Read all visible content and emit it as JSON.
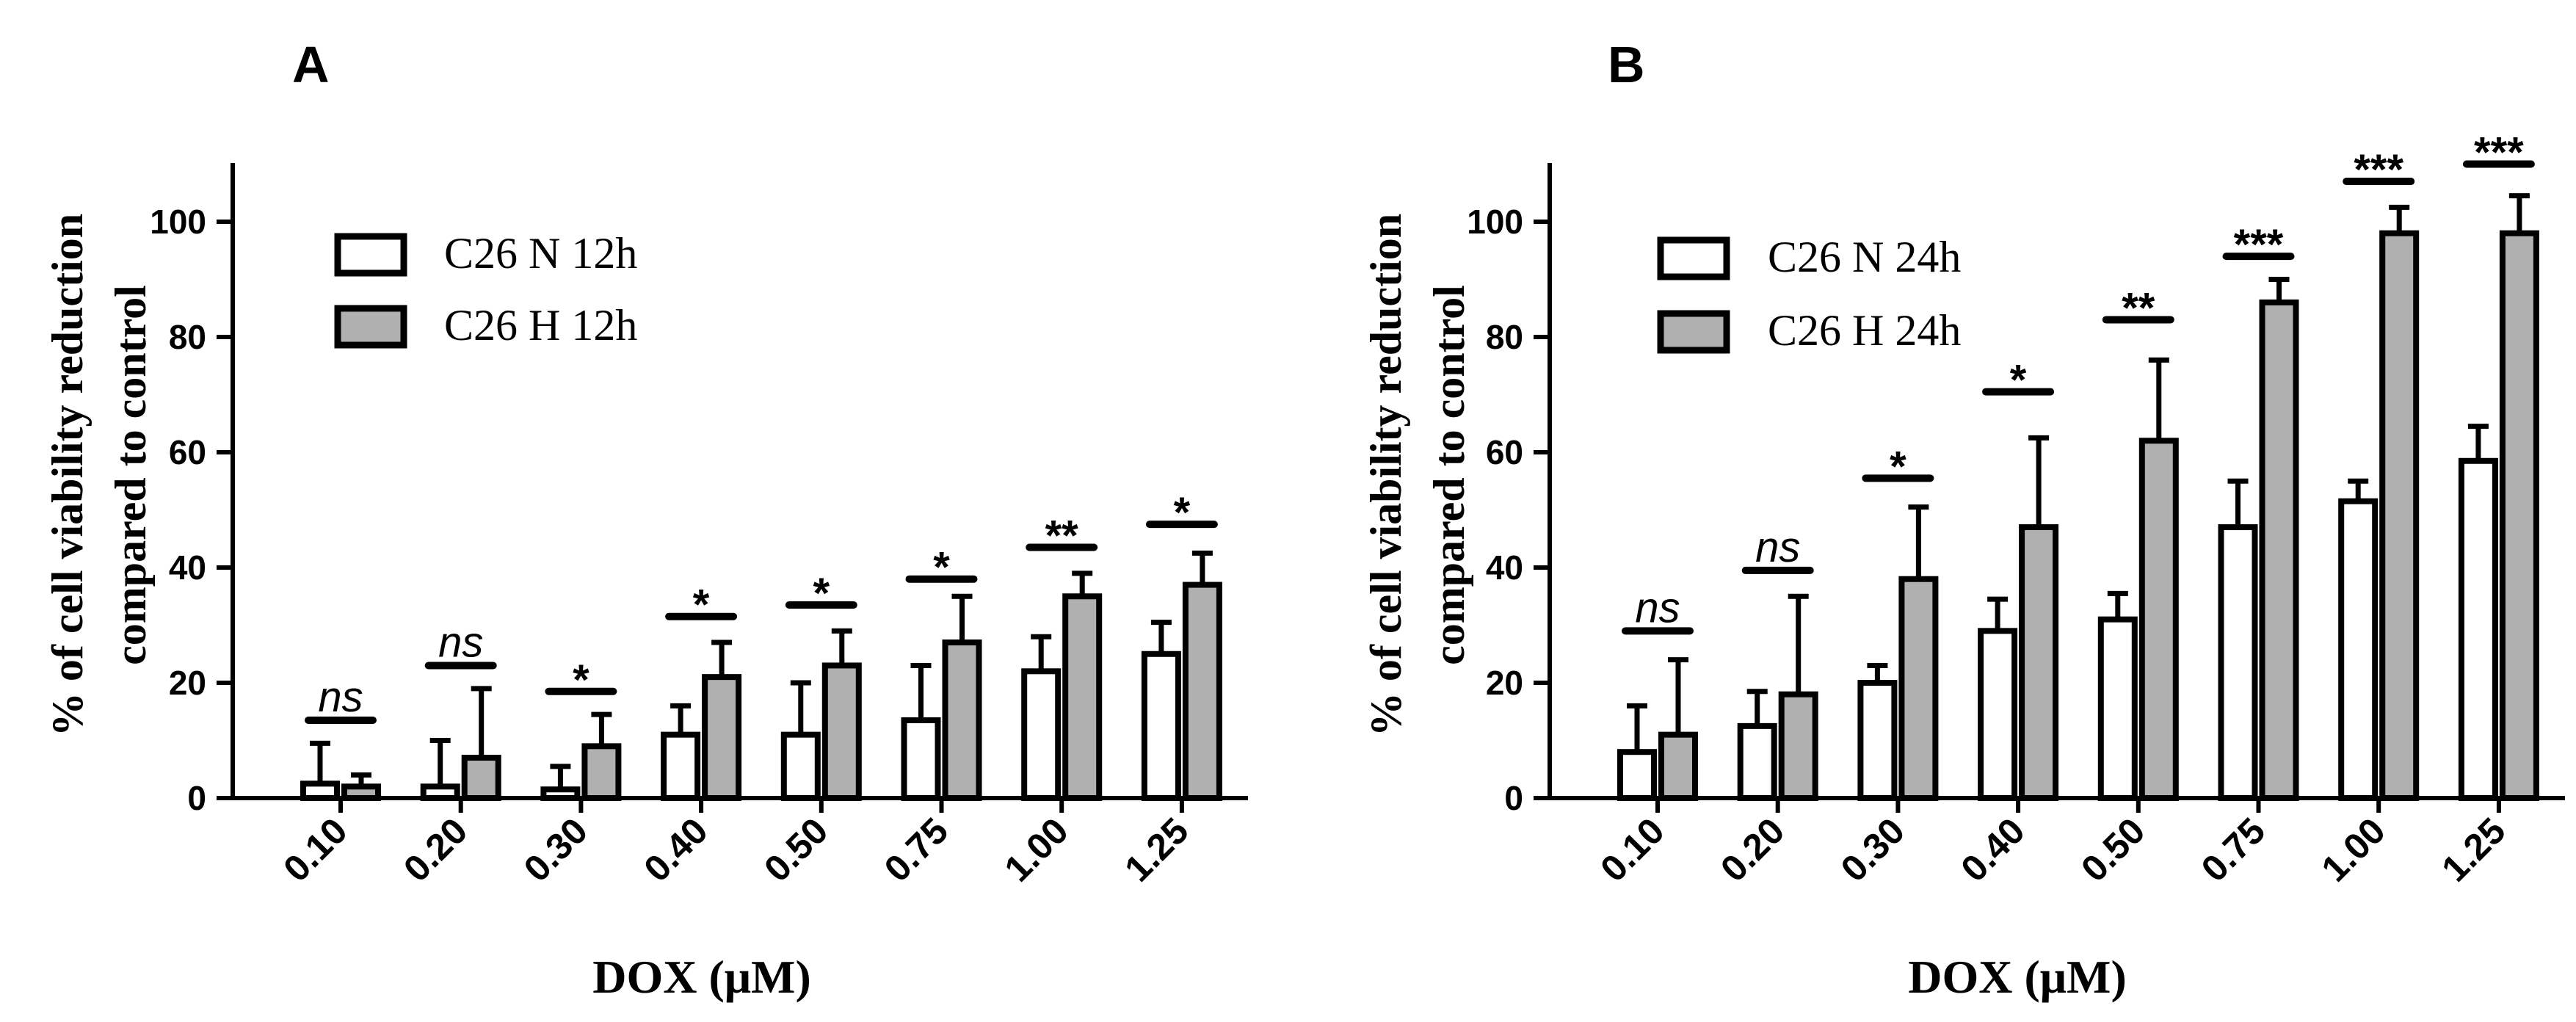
{
  "chart_data": [
    {
      "type": "bar",
      "panel": "A",
      "title": "",
      "xlabel": "DOX (μM)",
      "ylabel_line1": "% of cell viability reduction",
      "ylabel_line2": "compared to control",
      "ylim": [
        0,
        110
      ],
      "yticks": [
        0,
        20,
        40,
        60,
        80,
        100
      ],
      "ytick_labels": [
        "0",
        "20",
        "40",
        "60",
        "80",
        "100"
      ],
      "categories": [
        "0.10",
        "0.20",
        "0.30",
        "0.40",
        "0.50",
        "0.75",
        "1.00",
        "1.25"
      ],
      "series": [
        {
          "name": "C26 N 12h",
          "color": "#ffffff",
          "values": [
            2.5,
            2,
            1.5,
            11,
            11,
            13.5,
            22,
            25
          ],
          "errors": [
            7,
            8,
            4,
            5,
            9,
            9.5,
            6,
            5.5
          ]
        },
        {
          "name": "C26 H 12h",
          "color": "#b0b0b0",
          "values": [
            2,
            7,
            9,
            21,
            23,
            27,
            35,
            37
          ],
          "errors": [
            2,
            12,
            5.5,
            6,
            6,
            8,
            4,
            5.5
          ]
        }
      ],
      "significance": [
        "ns",
        "ns",
        "*",
        "*",
        "*",
        "*",
        "**",
        "*"
      ],
      "sig_heights": [
        13.5,
        23,
        18.5,
        31.5,
        33.5,
        38,
        43.5,
        47.5
      ],
      "legend_position": "top-left"
    },
    {
      "type": "bar",
      "panel": "B",
      "title": "",
      "xlabel": "DOX (μM)",
      "ylabel_line1": "% of cell viability reduction",
      "ylabel_line2": "compared to control",
      "ylim": [
        0,
        110
      ],
      "yticks": [
        0,
        20,
        40,
        60,
        80,
        100
      ],
      "ytick_labels": [
        "0",
        "20",
        "40",
        "60",
        "80",
        "100"
      ],
      "categories": [
        "0.10",
        "0.20",
        "0.30",
        "0.40",
        "0.50",
        "0.75",
        "1.00",
        "1.25"
      ],
      "series": [
        {
          "name": "C26 N 24h",
          "color": "#ffffff",
          "values": [
            8,
            12.5,
            20,
            29,
            31,
            47,
            51.5,
            58.5
          ],
          "errors": [
            8,
            6,
            3,
            5.5,
            4.5,
            8,
            3.5,
            6
          ]
        },
        {
          "name": "C26 H 24h",
          "color": "#b0b0b0",
          "values": [
            11,
            18,
            38,
            47,
            62,
            86,
            98,
            98
          ],
          "errors": [
            13,
            17,
            12.5,
            15.5,
            14,
            4,
            4.5,
            6.5
          ]
        }
      ],
      "significance": [
        "ns",
        "ns",
        "*",
        "*",
        "**",
        "***",
        "***",
        "***"
      ],
      "sig_heights": [
        29,
        39.5,
        55.5,
        70.5,
        83,
        94,
        107,
        110
      ],
      "legend_position": "top-left"
    }
  ]
}
